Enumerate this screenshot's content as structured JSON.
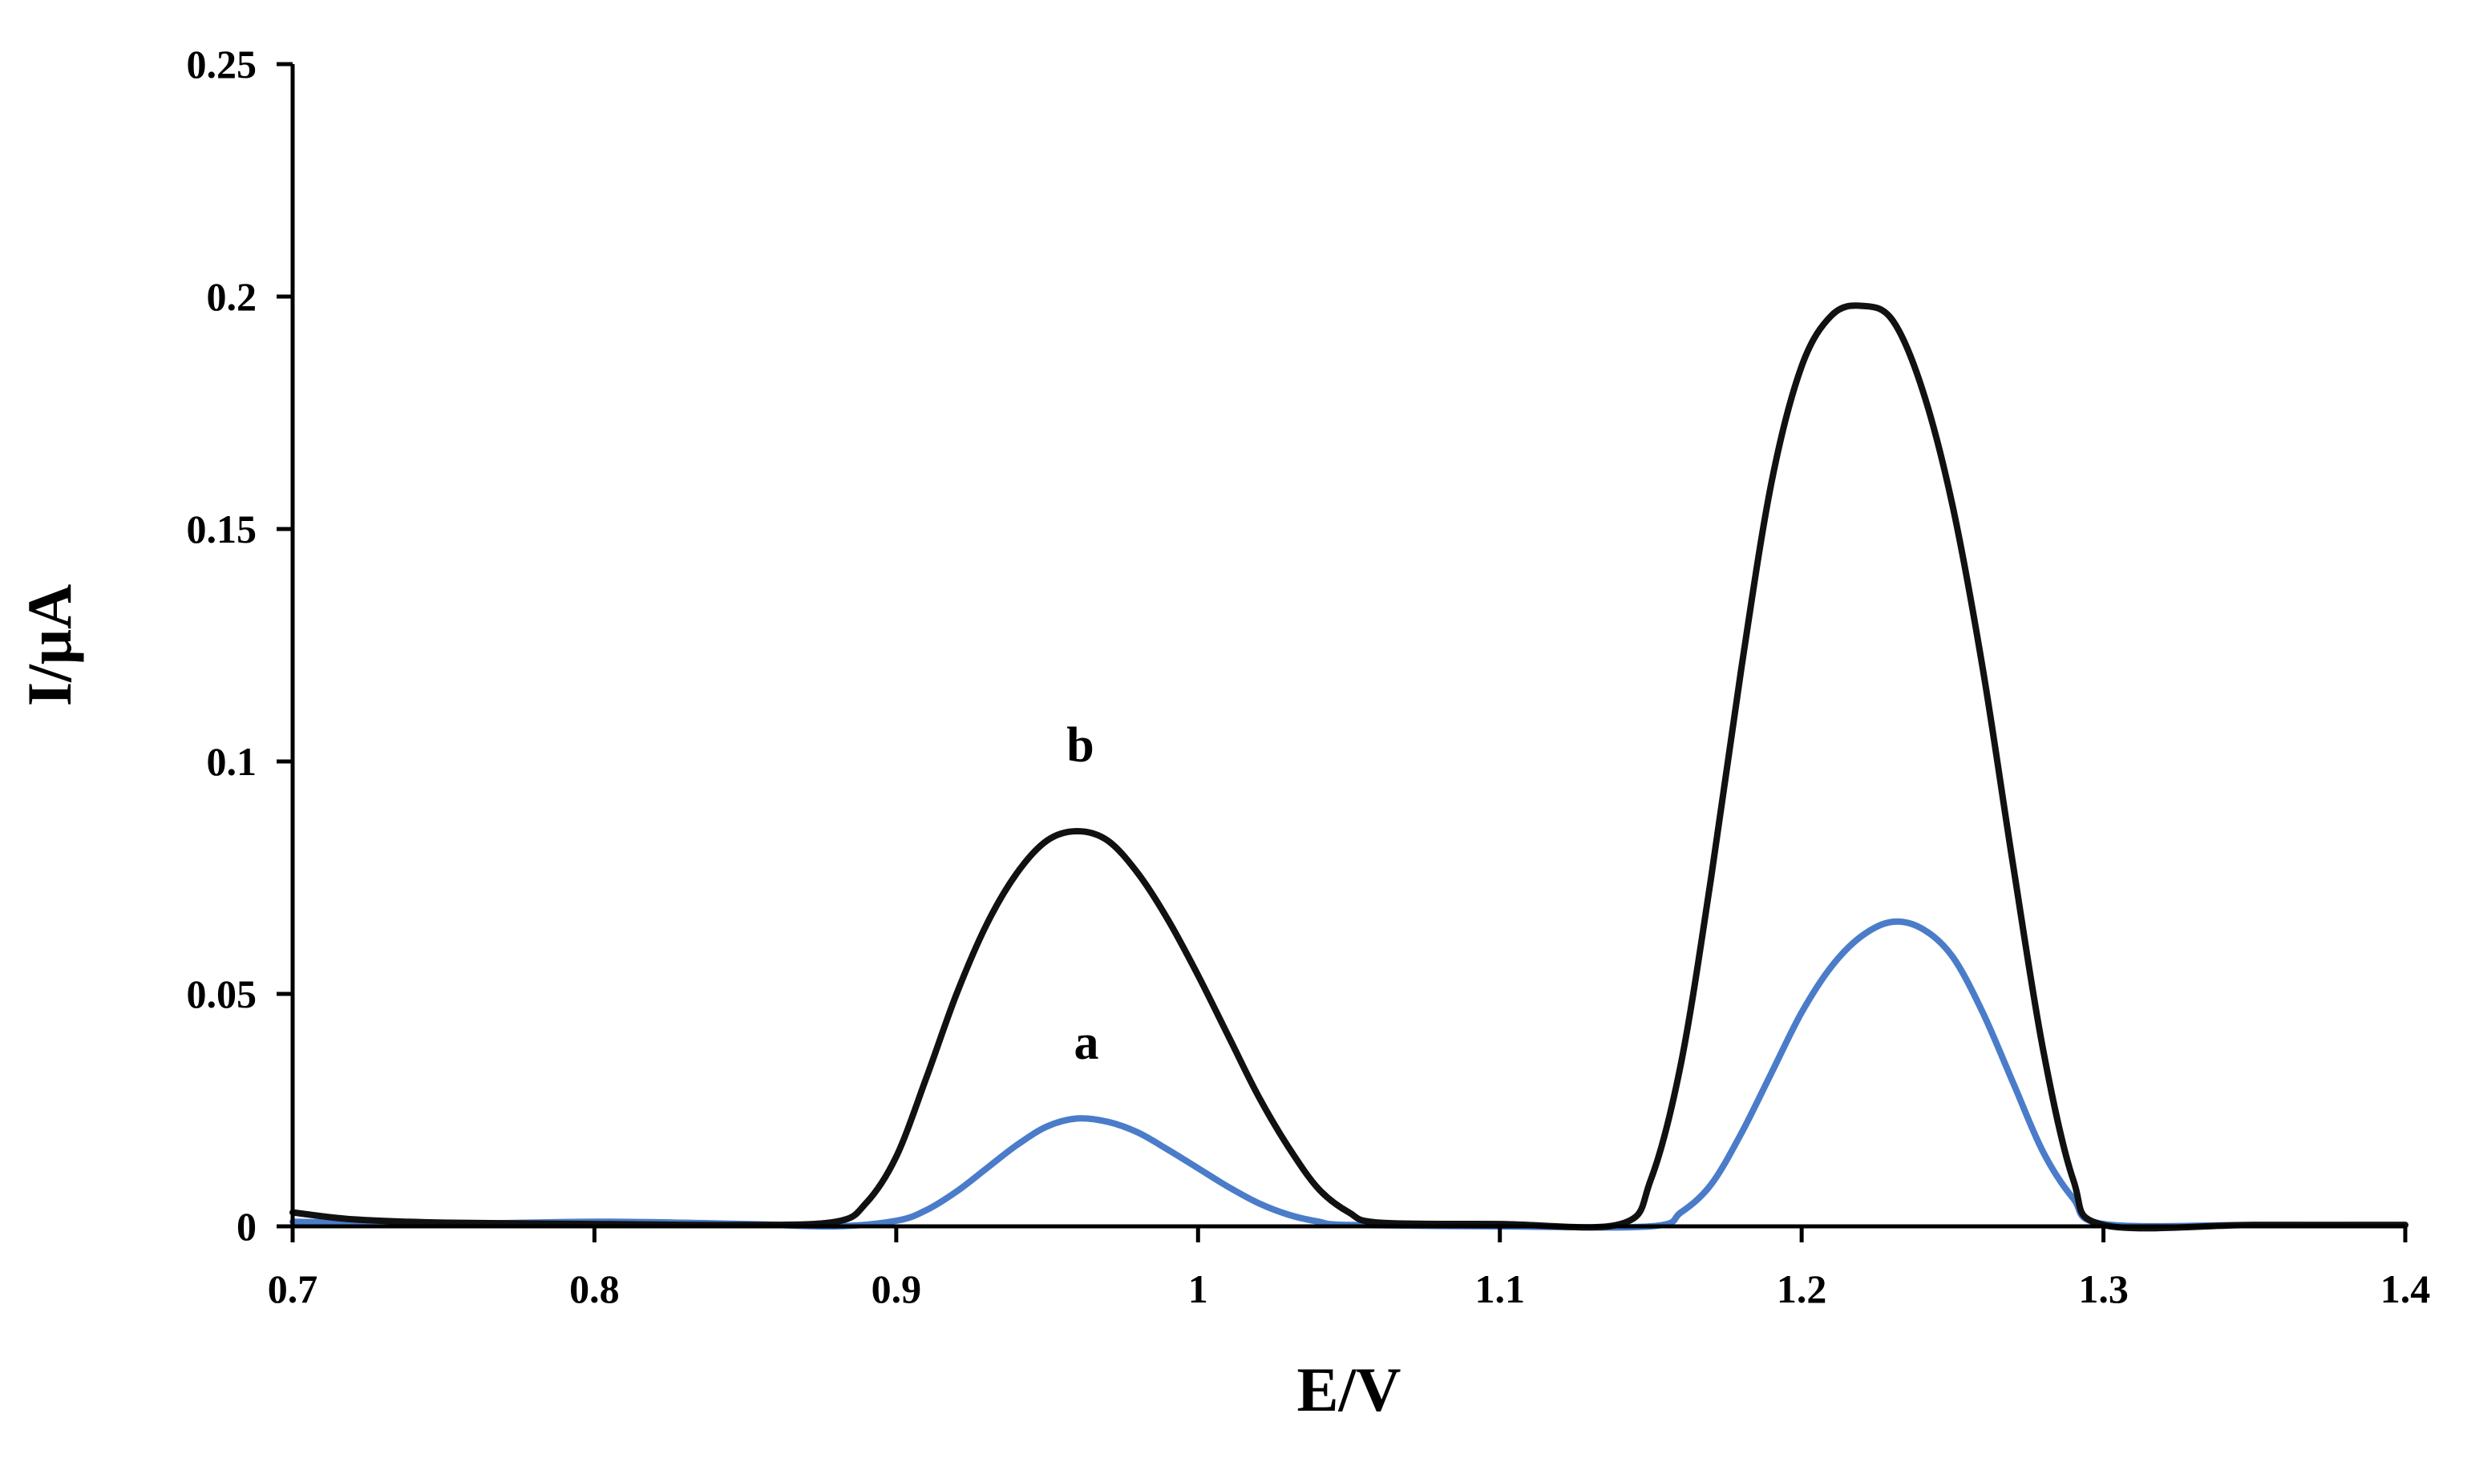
{
  "chart_data": {
    "type": "line",
    "title": "",
    "xlabel": "E/V",
    "ylabel": "I/μA",
    "xlim": [
      0.7,
      1.4
    ],
    "ylim": [
      0,
      0.25
    ],
    "xticks": [
      "0.7",
      "0.8",
      "0.9",
      "1",
      "1.1",
      "1.2",
      "1.3",
      "1.4"
    ],
    "yticks": [
      "0",
      "0.05",
      "0.1",
      "0.15",
      "0.2",
      "0.25"
    ],
    "grid": false,
    "legend": "none",
    "series": [
      {
        "name": "a",
        "color": "#4a7cc9",
        "x": [
          0.7,
          0.75,
          0.8,
          0.85,
          0.88,
          0.9,
          0.91,
          0.92,
          0.93,
          0.94,
          0.95,
          0.96,
          0.97,
          0.98,
          0.99,
          1.0,
          1.01,
          1.02,
          1.03,
          1.04,
          1.05,
          1.1,
          1.15,
          1.16,
          1.17,
          1.18,
          1.19,
          1.2,
          1.21,
          1.22,
          1.23,
          1.24,
          1.25,
          1.26,
          1.27,
          1.28,
          1.29,
          1.3,
          1.35,
          1.4
        ],
        "values": [
          0.001,
          0.0005,
          0.001,
          0.0005,
          0,
          0.0012,
          0.0035,
          0.0075,
          0.0125,
          0.0175,
          0.0215,
          0.0232,
          0.0225,
          0.0202,
          0.0165,
          0.0125,
          0.0085,
          0.005,
          0.0025,
          0.001,
          0.0003,
          0,
          0,
          0.003,
          0.009,
          0.02,
          0.033,
          0.046,
          0.056,
          0.0625,
          0.0655,
          0.064,
          0.058,
          0.046,
          0.031,
          0.016,
          0.006,
          0.0005,
          0.0003,
          0.0003
        ]
      },
      {
        "name": "b",
        "color": "#111111",
        "x": [
          0.7,
          0.72,
          0.75,
          0.8,
          0.85,
          0.88,
          0.89,
          0.9,
          0.91,
          0.92,
          0.93,
          0.94,
          0.95,
          0.96,
          0.97,
          0.98,
          0.99,
          1.0,
          1.01,
          1.02,
          1.03,
          1.04,
          1.05,
          1.06,
          1.1,
          1.14,
          1.15,
          1.16,
          1.17,
          1.18,
          1.19,
          1.2,
          1.21,
          1.22,
          1.23,
          1.24,
          1.25,
          1.26,
          1.27,
          1.28,
          1.29,
          1.3,
          1.35,
          1.4
        ],
        "values": [
          0.003,
          0.0015,
          0.0008,
          0.0005,
          0.0003,
          0.001,
          0.005,
          0.015,
          0.032,
          0.05,
          0.065,
          0.076,
          0.083,
          0.085,
          0.083,
          0.076,
          0.066,
          0.054,
          0.041,
          0.028,
          0.017,
          0.008,
          0.003,
          0.0008,
          0.0005,
          0.0005,
          0.01,
          0.035,
          0.075,
          0.12,
          0.16,
          0.185,
          0.196,
          0.198,
          0.195,
          0.18,
          0.155,
          0.12,
          0.078,
          0.038,
          0.01,
          0.0003,
          0.0003,
          0.0003
        ]
      }
    ],
    "annotations": [
      {
        "text": "b",
        "x": 0.961,
        "y": 0.1
      },
      {
        "text": "a",
        "x": 0.963,
        "y": 0.036
      }
    ]
  }
}
